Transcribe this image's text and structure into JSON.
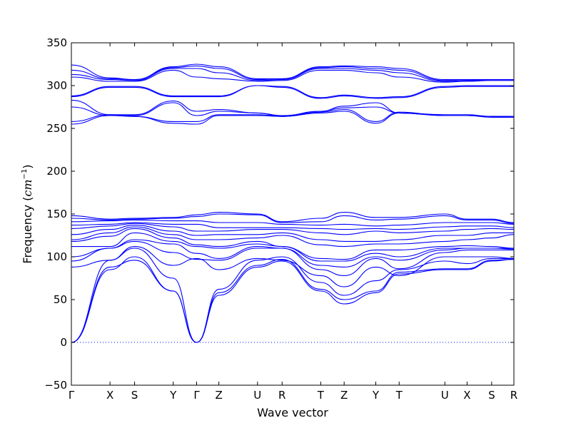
{
  "chart_data": {
    "type": "line",
    "title": "",
    "xlabel": "Wave vector",
    "ylabel_main": "Frequency (",
    "ylabel_unit": "cm",
    "ylabel_exp": "−1",
    "ylabel_close": ")",
    "ylim": [
      -50,
      350
    ],
    "yticks": [
      -50,
      0,
      50,
      100,
      150,
      200,
      250,
      300,
      350
    ],
    "ytick_labels": [
      "−50",
      "0",
      "50",
      "100",
      "150",
      "200",
      "250",
      "300",
      "350"
    ],
    "xlim": [
      0,
      18.9
    ],
    "grid": false,
    "line_color": "#0000ff",
    "zero_line_color": "#0000ff",
    "kpoints": [
      {
        "label": "Γ",
        "x": 0.0
      },
      {
        "label": "X",
        "x": 1.65
      },
      {
        "label": "S",
        "x": 2.7
      },
      {
        "label": "Y",
        "x": 4.35
      },
      {
        "label": "Γ",
        "x": 5.35
      },
      {
        "label": "Z",
        "x": 6.3
      },
      {
        "label": "U",
        "x": 7.95
      },
      {
        "label": "R",
        "x": 9.0
      },
      {
        "label": "T",
        "x": 10.65
      },
      {
        "label": "Z",
        "x": 11.65
      },
      {
        "label": "Y",
        "x": 13.0
      },
      {
        "label": "T",
        "x": 14.0
      },
      {
        "label": "U",
        "x": 15.95
      },
      {
        "label": "X",
        "x": 16.9
      },
      {
        "label": "S",
        "x": 17.95
      },
      {
        "label": "R",
        "x": 18.9
      }
    ],
    "bands": [
      {
        "name": "",
        "values": [
          0,
          85,
          100,
          60,
          0,
          55,
          88,
          95,
          60,
          45,
          58,
          80,
          85,
          85,
          95,
          97
        ]
      },
      {
        "name": "",
        "values": [
          0,
          88,
          96,
          60,
          0,
          58,
          90,
          97,
          62,
          50,
          60,
          82,
          86,
          86,
          96,
          97
        ]
      },
      {
        "name": "",
        "values": [
          0,
          96,
          110,
          75,
          0,
          62,
          96,
          100,
          70,
          55,
          72,
          85,
          95,
          92,
          98,
          98
        ]
      },
      {
        "name": "",
        "values": [
          88,
          96,
          112,
          90,
          98,
          85,
          98,
          96,
          78,
          65,
          88,
          78,
          100,
          100,
          100,
          98
        ]
      },
      {
        "name": "",
        "values": [
          95,
          110,
          118,
          105,
          97,
          96,
          110,
          110,
          85,
          78,
          98,
          86,
          105,
          108,
          108,
          108
        ]
      },
      {
        "name": "",
        "values": [
          100,
          110,
          120,
          115,
          104,
          98,
          112,
          110,
          90,
          88,
          100,
          96,
          108,
          110,
          110,
          109
        ]
      },
      {
        "name": "",
        "values": [
          112,
          112,
          128,
          118,
          112,
          110,
          115,
          112,
          95,
          95,
          104,
          100,
          110,
          110,
          110,
          110
        ]
      },
      {
        "name": "",
        "values": [
          118,
          124,
          133,
          122,
          114,
          112,
          118,
          112,
          98,
          97,
          108,
          108,
          112,
          113,
          112,
          110
        ]
      },
      {
        "name": "",
        "values": [
          120,
          128,
          135,
          126,
          120,
          120,
          122,
          125,
          114,
          112,
          115,
          115,
          118,
          120,
          122,
          126
        ]
      },
      {
        "name": "",
        "values": [
          126,
          132,
          137,
          130,
          125,
          126,
          126,
          128,
          120,
          118,
          118,
          120,
          125,
          125,
          128,
          128
        ]
      },
      {
        "name": "",
        "values": [
          133,
          136,
          139,
          135,
          130,
          130,
          132,
          132,
          128,
          126,
          130,
          128,
          130,
          132,
          133,
          132
        ]
      },
      {
        "name": "",
        "values": [
          137,
          138,
          140,
          138,
          138,
          134,
          134,
          134,
          133,
          132,
          133,
          132,
          135,
          136,
          136,
          134
        ]
      },
      {
        "name": "",
        "values": [
          141,
          142,
          143,
          142,
          142,
          140,
          140,
          138,
          137,
          138,
          136,
          137,
          140,
          140,
          140,
          138
        ]
      },
      {
        "name": "",
        "values": [
          145,
          143,
          144,
          145,
          147,
          150,
          149,
          140,
          141,
          148,
          143,
          144,
          148,
          143,
          143,
          139
        ]
      },
      {
        "name": "",
        "values": [
          148,
          144,
          145,
          146,
          149,
          152,
          150,
          141,
          145,
          152,
          146,
          146,
          150,
          144,
          144,
          140
        ]
      },
      {
        "name": "",
        "values": [
          255,
          265,
          264,
          256,
          255,
          265,
          265,
          264,
          268,
          270,
          256,
          268,
          265,
          265,
          263,
          263
        ]
      },
      {
        "name": "",
        "values": [
          258,
          266,
          264,
          258,
          258,
          266,
          266,
          264,
          269,
          272,
          258,
          269,
          265,
          265,
          264,
          263
        ]
      },
      {
        "name": "",
        "values": [
          275,
          265,
          265,
          280,
          265,
          270,
          268,
          264,
          270,
          274,
          275,
          268,
          265,
          265,
          264,
          264
        ]
      },
      {
        "name": "",
        "values": [
          283,
          266,
          266,
          282,
          270,
          272,
          268,
          265,
          270,
          276,
          280,
          268,
          266,
          266,
          264,
          264
        ]
      },
      {
        "name": "",
        "values": [
          287,
          298,
          298,
          287,
          287,
          287,
          300,
          298,
          285,
          288,
          285,
          286,
          298,
          299,
          299,
          299
        ]
      },
      {
        "name": "",
        "values": [
          288,
          299,
          299,
          288,
          288,
          288,
          300,
          299,
          286,
          289,
          286,
          287,
          299,
          300,
          300,
          300
        ]
      },
      {
        "name": "",
        "values": [
          310,
          305,
          305,
          318,
          310,
          308,
          305,
          306,
          318,
          318,
          315,
          310,
          304,
          305,
          306,
          306
        ]
      },
      {
        "name": "",
        "values": [
          313,
          307,
          306,
          320,
          320,
          315,
          306,
          307,
          320,
          320,
          318,
          315,
          305,
          306,
          307,
          307
        ]
      },
      {
        "name": "",
        "values": [
          318,
          308,
          307,
          321,
          323,
          320,
          307,
          308,
          321,
          322,
          320,
          318,
          306,
          306,
          307,
          307
        ]
      },
      {
        "name": "",
        "values": [
          324,
          309,
          307,
          322,
          325,
          322,
          308,
          308,
          322,
          323,
          322,
          320,
          307,
          307,
          307,
          307
        ]
      }
    ]
  }
}
